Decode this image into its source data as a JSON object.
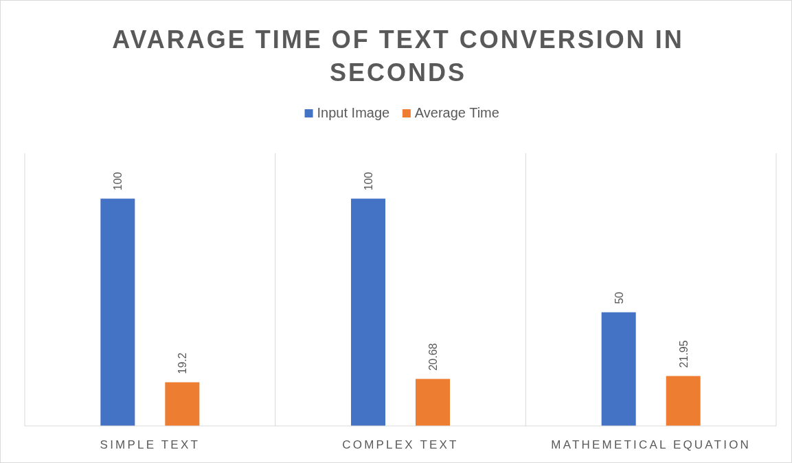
{
  "chart_data": {
    "type": "bar",
    "title": "AVARAGE TIME OF TEXT CONVERSION IN SECONDS",
    "categories": [
      "SIMPLE TEXT",
      "COMPLEX TEXT",
      "MATHEMETICAL EQUATION"
    ],
    "series": [
      {
        "name": "Input Image",
        "color": "#4472c4",
        "values": [
          100,
          100,
          50
        ]
      },
      {
        "name": "Average Time",
        "color": "#ed7d31",
        "values": [
          19.2,
          20.68,
          21.95
        ]
      }
    ],
    "ylim": [
      0,
      120
    ],
    "tick_labels": "x",
    "grid": "x",
    "legend": "top",
    "data_labels": true
  }
}
